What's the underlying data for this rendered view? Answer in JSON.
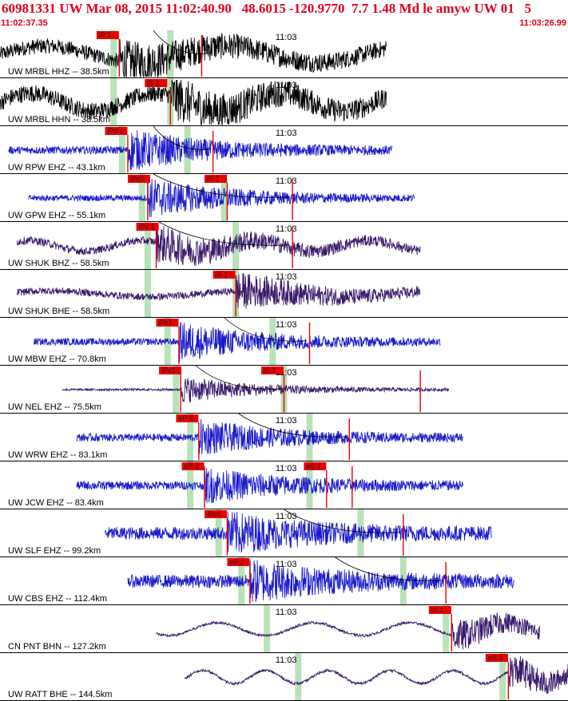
{
  "header": {
    "title": "60981331 UW Mar 08, 2015 11:02:40.90   48.6015 -120.9770  7.7 1.48 Md le amyw UW 01   5",
    "start_time": "11:02:37.35",
    "end_time": "11:03:26.99"
  },
  "colors": {
    "header_text": "#e0001b",
    "pick_flag": "#e80000",
    "pick_window": "#b8e2b8",
    "trace_blue": "#1a1acc",
    "trace_purple": "#3a1a6a",
    "trace_black": "#000000",
    "separator": "#000000"
  },
  "time_marker": "11:03",
  "panels": [
    {
      "label": "UW MRBL HHZ -- 38.5km",
      "color": "black",
      "kind": "wave",
      "start": 0.0,
      "end": 0.68,
      "amp": 0.7,
      "period": 0.32,
      "noise": 0.35,
      "windows": [
        0.2,
        0.3
      ],
      "picks": [
        {
          "label": "iP 1",
          "pos": 0.17,
          "at": 0.21
        },
        {
          "label": "",
          "pos": 0.35,
          "at": 0.355
        }
      ],
      "curve": [
        0.27,
        0.37
      ]
    },
    {
      "label": "UW MRBL HHN -- 38.5km",
      "color": "black",
      "kind": "wave",
      "start": 0.0,
      "end": 0.68,
      "amp": 0.75,
      "period": 0.22,
      "noise": 0.4,
      "windows": [
        0.2,
        0.3
      ],
      "picks": [
        {
          "label": "iS 1",
          "pos": 0.255,
          "at": 0.3
        }
      ],
      "curve": null
    },
    {
      "label": "UW RPW EHZ -- 43.1km",
      "color": "blue",
      "kind": "burst",
      "start": 0.015,
      "end": 0.69,
      "amp": 0.85,
      "period": 0.5,
      "noise": 0.18,
      "windows": [
        0.215,
        0.33
      ],
      "picks": [
        {
          "label": "iPd 1",
          "pos": 0.185,
          "at": 0.225
        },
        {
          "label": "",
          "pos": 0.37,
          "at": 0.375
        }
      ],
      "curve": [
        0.27,
        0.37
      ]
    },
    {
      "label": "UW GPW EHZ -- 55.1km",
      "color": "blue",
      "kind": "burst",
      "start": 0.05,
      "end": 0.73,
      "amp": 0.85,
      "period": 0.5,
      "noise": 0.14,
      "windows": [
        0.25,
        0.395
      ],
      "picks": [
        {
          "label": "iPd1",
          "pos": 0.225,
          "at": 0.26
        },
        {
          "label": "iS 1",
          "pos": 0.36,
          "at": 0.4
        },
        {
          "label": "",
          "pos": 0.51,
          "at": 0.515
        }
      ],
      "curve": [
        0.27,
        0.51
      ]
    },
    {
      "label": "UW SHUK BHZ -- 58.5km",
      "color": "purple",
      "kind": "wave",
      "start": 0.03,
      "end": 0.74,
      "amp": 0.45,
      "period": 0.2,
      "noise": 0.18,
      "windows": [
        0.26,
        0.415
      ],
      "picks": [
        {
          "label": "iPc 1",
          "pos": 0.24,
          "at": 0.275
        },
        {
          "label": "",
          "pos": 0.51,
          "at": 0.515
        }
      ],
      "curve": [
        0.28,
        0.51
      ]
    },
    {
      "label": "UW SHUK BHE -- 58.5km",
      "color": "purple",
      "kind": "wave",
      "start": 0.03,
      "end": 0.74,
      "amp": 0.25,
      "period": 0.35,
      "noise": 0.16,
      "windows": [
        0.26,
        0.415
      ],
      "picks": [
        {
          "label": "iS 1",
          "pos": 0.375,
          "at": 0.415
        }
      ],
      "curve": null
    },
    {
      "label": "UW MBW EHZ -- 70.8km",
      "color": "blue",
      "kind": "burst",
      "start": 0.06,
      "end": 0.775,
      "amp": 0.8,
      "period": 0.5,
      "noise": 0.16,
      "windows": [
        0.295,
        0.48
      ],
      "picks": [
        {
          "label": "iPc1",
          "pos": 0.275,
          "at": 0.315
        },
        {
          "label": "",
          "pos": 0.54,
          "at": 0.545
        }
      ],
      "curve": [
        0.395,
        0.54
      ]
    },
    {
      "label": "UW NEL EHZ -- 75.5km",
      "color": "purple",
      "kind": "burst",
      "start": 0.11,
      "end": 0.79,
      "amp": 0.6,
      "period": 0.5,
      "noise": 0.05,
      "windows": [
        0.31,
        0.5
      ],
      "picks": [
        {
          "label": "iPd1",
          "pos": 0.28,
          "at": 0.318
        },
        {
          "label": "iS 1",
          "pos": 0.46,
          "at": 0.5
        },
        {
          "label": "",
          "pos": 0.735,
          "at": 0.74
        }
      ],
      "curve": [
        0.345,
        0.5
      ]
    },
    {
      "label": "UW WRW EHZ -- 83.1km",
      "color": "blue",
      "kind": "burst",
      "start": 0.135,
      "end": 0.815,
      "amp": 0.7,
      "period": 0.5,
      "noise": 0.18,
      "windows": [
        0.335,
        0.545
      ],
      "picks": [
        {
          "label": "eP 2",
          "pos": 0.31,
          "at": 0.35
        },
        {
          "label": "",
          "pos": 0.61,
          "at": 0.615
        }
      ],
      "curve": [
        0.42,
        0.61
      ]
    },
    {
      "label": "UW JCW EHZ -- 83.4km",
      "color": "blue",
      "kind": "burst",
      "start": 0.135,
      "end": 0.815,
      "amp": 0.7,
      "period": 0.5,
      "noise": 0.2,
      "windows": [
        0.335,
        0.545
      ],
      "picks": [
        {
          "label": "eP 2",
          "pos": 0.32,
          "at": 0.36
        },
        {
          "label": "eS 2",
          "pos": 0.535,
          "at": 0.575
        },
        {
          "label": "",
          "pos": 0.615,
          "at": 0.62
        }
      ],
      "curve": null
    },
    {
      "label": "UW SLF EHZ -- 99.2km",
      "color": "blue",
      "kind": "burst",
      "start": 0.185,
      "end": 0.865,
      "amp": 0.8,
      "period": 0.5,
      "noise": 0.3,
      "windows": [
        0.385,
        0.635
      ],
      "picks": [
        {
          "label": "iPc1",
          "pos": 0.36,
          "at": 0.4
        },
        {
          "label": "",
          "pos": 0.705,
          "at": 0.71
        }
      ],
      "curve": [
        0.5,
        0.705
      ]
    },
    {
      "label": "UW CBS EHZ -- 112.4km",
      "color": "blue",
      "kind": "burst",
      "start": 0.225,
      "end": 0.905,
      "amp": 0.8,
      "period": 0.5,
      "noise": 0.3,
      "windows": [
        0.425,
        0.71
      ],
      "picks": [
        {
          "label": "eP 2",
          "pos": 0.4,
          "at": 0.44
        },
        {
          "label": "",
          "pos": 0.78,
          "at": 0.785
        }
      ],
      "curve": [
        0.59,
        0.78
      ]
    },
    {
      "label": "CN PNT BHN -- 127.2km",
      "color": "purple",
      "kind": "wave",
      "start": 0.275,
      "end": 0.95,
      "amp": 0.55,
      "period": 0.17,
      "noise": 0.06,
      "windows": [
        0.47,
        0.785
      ],
      "picks": [
        {
          "label": "iS 1",
          "pos": 0.755,
          "at": 0.795
        }
      ],
      "curve": null
    },
    {
      "label": "UW RATT BHE -- 144.5km",
      "color": "purple",
      "kind": "wave",
      "start": 0.325,
      "end": 1.0,
      "amp": 0.55,
      "period": 0.11,
      "noise": 0.06,
      "windows": [
        0.525,
        0.885
      ],
      "picks": [
        {
          "label": "eS 2",
          "pos": 0.855,
          "at": 0.895
        }
      ],
      "curve": null
    }
  ]
}
